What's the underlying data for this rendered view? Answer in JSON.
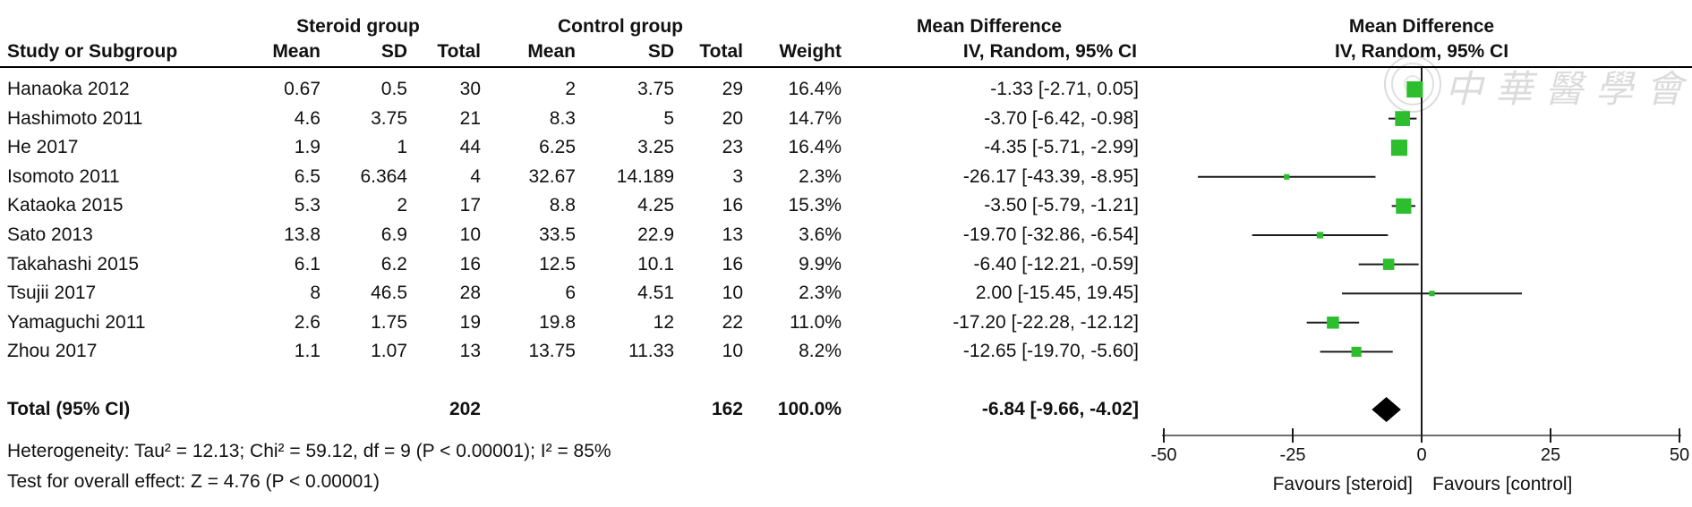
{
  "headers": {
    "study": "Study or Subgroup",
    "steroid_group": "Steroid group",
    "control_group": "Control group",
    "col_mean_steroid": "Mean",
    "col_sd_steroid": "SD",
    "col_total_steroid": "Total",
    "col_mean_control": "Mean",
    "col_sd_control": "SD",
    "col_total_control": "Total",
    "col_weight": "Weight",
    "md_table_line1": "Mean Difference",
    "md_table_line2": "IV, Random, 95% CI",
    "md_plot_line1": "Mean Difference",
    "md_plot_line2": "IV, Random, 95% CI"
  },
  "chart_data": {
    "type": "scatter",
    "subtype": "forest-plot-meta-analysis",
    "effect_measure": "Mean Difference IV, Random, 95% CI",
    "x_axis": {
      "min": -50,
      "max": 50,
      "ticks": [
        -50,
        -25,
        0,
        25,
        50
      ],
      "favours_left": "Favours [steroid]",
      "favours_right": "Favours [control]"
    },
    "studies": [
      {
        "name": "Hanaoka 2012",
        "steroid": {
          "mean": "0.67",
          "sd": "0.5",
          "total": "30"
        },
        "control": {
          "mean": "2",
          "sd": "3.75",
          "total": "29"
        },
        "weight": "16.4%",
        "weight_pct": 16.4,
        "md": -1.33,
        "ci_low": -2.71,
        "ci_high": 0.05,
        "ci_label": "-1.33 [-2.71, 0.05]"
      },
      {
        "name": "Hashimoto 2011",
        "steroid": {
          "mean": "4.6",
          "sd": "3.75",
          "total": "21"
        },
        "control": {
          "mean": "8.3",
          "sd": "5",
          "total": "20"
        },
        "weight": "14.7%",
        "weight_pct": 14.7,
        "md": -3.7,
        "ci_low": -6.42,
        "ci_high": -0.98,
        "ci_label": "-3.70 [-6.42, -0.98]"
      },
      {
        "name": "He 2017",
        "steroid": {
          "mean": "1.9",
          "sd": "1",
          "total": "44"
        },
        "control": {
          "mean": "6.25",
          "sd": "3.25",
          "total": "23"
        },
        "weight": "16.4%",
        "weight_pct": 16.4,
        "md": -4.35,
        "ci_low": -5.71,
        "ci_high": -2.99,
        "ci_label": "-4.35 [-5.71, -2.99]"
      },
      {
        "name": "Isomoto 2011",
        "steroid": {
          "mean": "6.5",
          "sd": "6.364",
          "total": "4"
        },
        "control": {
          "mean": "32.67",
          "sd": "14.189",
          "total": "3"
        },
        "weight": "2.3%",
        "weight_pct": 2.3,
        "md": -26.17,
        "ci_low": -43.39,
        "ci_high": -8.95,
        "ci_label": "-26.17 [-43.39, -8.95]"
      },
      {
        "name": "Kataoka 2015",
        "steroid": {
          "mean": "5.3",
          "sd": "2",
          "total": "17"
        },
        "control": {
          "mean": "8.8",
          "sd": "4.25",
          "total": "16"
        },
        "weight": "15.3%",
        "weight_pct": 15.3,
        "md": -3.5,
        "ci_low": -5.79,
        "ci_high": -1.21,
        "ci_label": "-3.50 [-5.79, -1.21]"
      },
      {
        "name": "Sato 2013",
        "steroid": {
          "mean": "13.8",
          "sd": "6.9",
          "total": "10"
        },
        "control": {
          "mean": "33.5",
          "sd": "22.9",
          "total": "13"
        },
        "weight": "3.6%",
        "weight_pct": 3.6,
        "md": -19.7,
        "ci_low": -32.86,
        "ci_high": -6.54,
        "ci_label": "-19.70 [-32.86, -6.54]"
      },
      {
        "name": "Takahashi 2015",
        "steroid": {
          "mean": "6.1",
          "sd": "6.2",
          "total": "16"
        },
        "control": {
          "mean": "12.5",
          "sd": "10.1",
          "total": "16"
        },
        "weight": "9.9%",
        "weight_pct": 9.9,
        "md": -6.4,
        "ci_low": -12.21,
        "ci_high": -0.59,
        "ci_label": "-6.40 [-12.21, -0.59]"
      },
      {
        "name": "Tsujii 2017",
        "steroid": {
          "mean": "8",
          "sd": "46.5",
          "total": "28"
        },
        "control": {
          "mean": "6",
          "sd": "4.51",
          "total": "10"
        },
        "weight": "2.3%",
        "weight_pct": 2.3,
        "md": 2.0,
        "ci_low": -15.45,
        "ci_high": 19.45,
        "ci_label": "2.00 [-15.45, 19.45]"
      },
      {
        "name": "Yamaguchi 2011",
        "steroid": {
          "mean": "2.6",
          "sd": "1.75",
          "total": "19"
        },
        "control": {
          "mean": "19.8",
          "sd": "12",
          "total": "22"
        },
        "weight": "11.0%",
        "weight_pct": 11.0,
        "md": -17.2,
        "ci_low": -22.28,
        "ci_high": -12.12,
        "ci_label": "-17.20 [-22.28, -12.12]"
      },
      {
        "name": "Zhou 2017",
        "steroid": {
          "mean": "1.1",
          "sd": "1.07",
          "total": "13"
        },
        "control": {
          "mean": "13.75",
          "sd": "11.33",
          "total": "10"
        },
        "weight": "8.2%",
        "weight_pct": 8.2,
        "md": -12.65,
        "ci_low": -19.7,
        "ci_high": -5.6,
        "ci_label": "-12.65 [-19.70, -5.60]"
      }
    ],
    "total": {
      "label": "Total (95% CI)",
      "steroid_total": "202",
      "control_total": "162",
      "weight": "100.0%",
      "md": -6.84,
      "ci_low": -9.66,
      "ci_high": -4.02,
      "ci_label": "-6.84 [-9.66, -4.02]"
    }
  },
  "footer": {
    "heterogeneity": "Heterogeneity: Tau² = 12.13; Chi² = 59.12, df = 9 (P < 0.00001); I² = 85%",
    "overall_effect": "Test for overall effect: Z = 4.76 (P < 0.00001)"
  },
  "watermark": {
    "text": "中華醫學會"
  },
  "colors": {
    "marker": "#2dbe2d",
    "diamond": "#000000",
    "ci_line": "#1a1a1a",
    "axis_line": "#6e6e6e",
    "separator": "#000000"
  }
}
